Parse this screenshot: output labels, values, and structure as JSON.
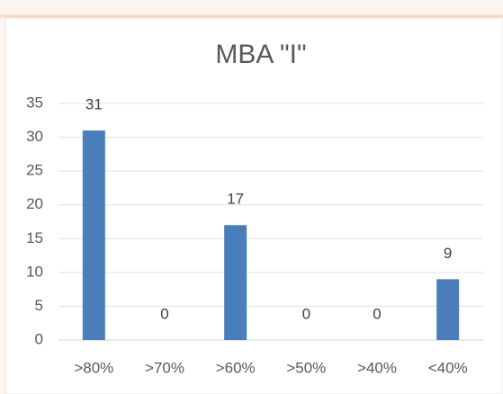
{
  "chart_data": {
    "type": "bar",
    "title": "MBA \"I\"",
    "categories": [
      ">80%",
      ">70%",
      ">60%",
      ">50%",
      ">40%",
      "<40%"
    ],
    "values": [
      31,
      0,
      17,
      0,
      0,
      9
    ],
    "color": "#4a7ebb",
    "ylim": [
      0,
      35
    ],
    "yticks": [
      0,
      5,
      10,
      15,
      20,
      25,
      30,
      35
    ],
    "grid": true
  }
}
